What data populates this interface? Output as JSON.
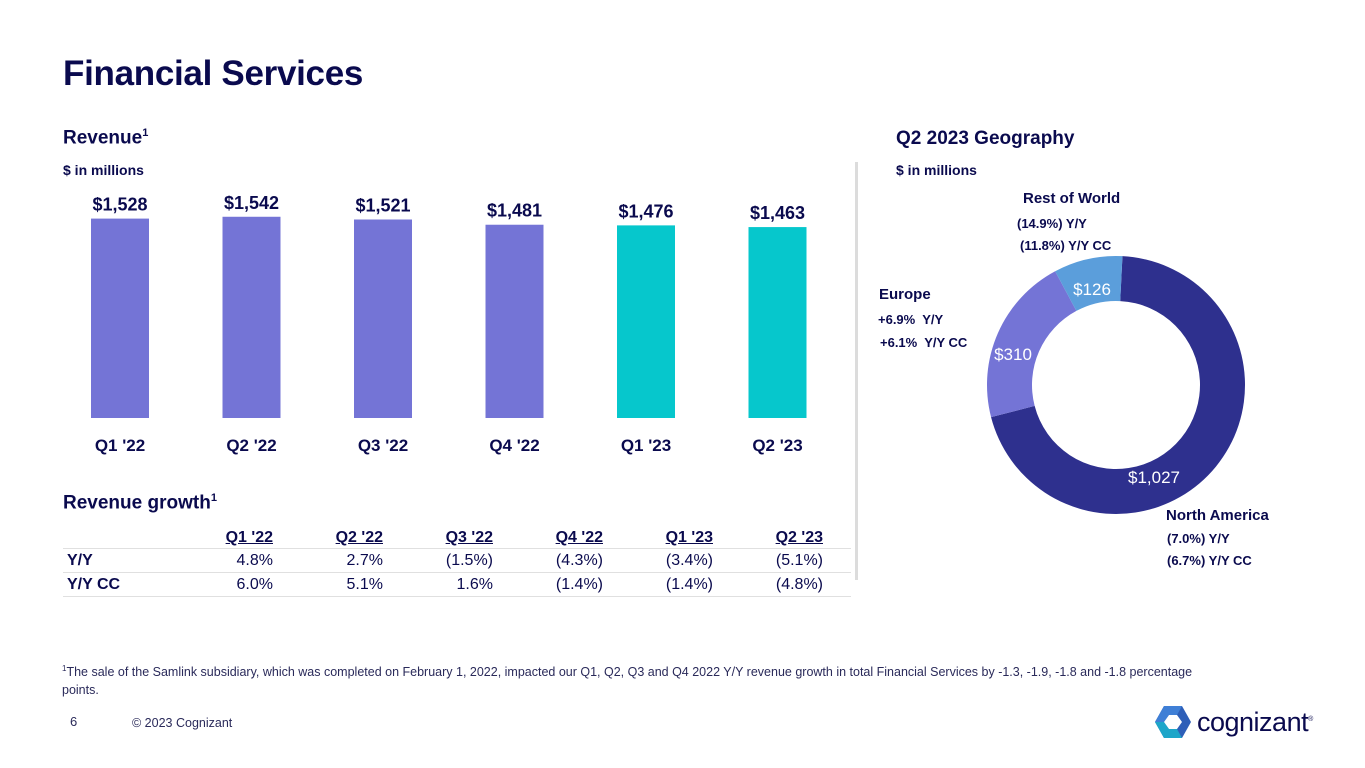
{
  "page": {
    "title": "Financial Services",
    "page_number": "6",
    "copyright": "© 2023 Cognizant",
    "logo_text": "cognizant",
    "logo_mark": "®"
  },
  "revenue": {
    "title": "Revenue",
    "title_sup": "1",
    "units": "$ in millions"
  },
  "growth": {
    "title": "Revenue growth",
    "title_sup": "1",
    "columns": [
      "Q1 '22",
      "Q2 '22",
      "Q3 '22",
      "Q4 '22",
      "Q1 '23",
      "Q2 '23"
    ],
    "rows": [
      {
        "label": "Y/Y",
        "values": [
          "4.8%",
          "2.7%",
          "(1.5%)",
          "(4.3%)",
          "(3.4%)",
          "(5.1%)"
        ]
      },
      {
        "label": "Y/Y CC",
        "values": [
          "6.0%",
          "5.1%",
          "1.6%",
          "(1.4%)",
          "(1.4%)",
          "(4.8%)"
        ]
      }
    ]
  },
  "geography": {
    "title": "Q2 2023 Geography",
    "units": "$ in millions",
    "regions": [
      {
        "name": "North America",
        "value_label": "$1,027",
        "yy": "(7.0%) Y/Y",
        "yycc": "(6.7%) Y/Y CC"
      },
      {
        "name": "Europe",
        "value_label": "$310",
        "yy": "+6.9%  Y/Y",
        "yycc": "+6.1%  Y/Y CC"
      },
      {
        "name": "Rest of World",
        "value_label": "$126",
        "yy": "(14.9%) Y/Y",
        "yycc": "(11.8%) Y/Y CC"
      }
    ]
  },
  "footnote": {
    "sup": "1",
    "text": "The sale of the Samlink subsidiary, which was completed on February 1, 2022, impacted our Q1, Q2, Q3 and Q4 2022 Y/Y revenue growth in total Financial Services by -1.3, -1.9, -1.8 and -1.8 percentage points."
  },
  "colors": {
    "bar_2022": "#7474d6",
    "bar_2023": "#06c7cc",
    "north_america": "#2e308e",
    "europe": "#7474d6",
    "rest_of_world": "#5b9edb",
    "text": "#0a0a4e"
  },
  "chart_data": [
    {
      "type": "bar",
      "title": "Revenue",
      "ylabel": "$ in millions",
      "xlabel": "",
      "categories": [
        "Q1 '22",
        "Q2 '22",
        "Q3 '22",
        "Q4 '22",
        "Q1 '23",
        "Q2 '23"
      ],
      "values": [
        1528,
        1542,
        1521,
        1481,
        1476,
        1463
      ],
      "data_labels": [
        "$1,528",
        "$1,542",
        "$1,521",
        "$1,481",
        "$1,476",
        "$1,463"
      ],
      "series_colors": [
        "bar_2022",
        "bar_2022",
        "bar_2022",
        "bar_2022",
        "bar_2023",
        "bar_2023"
      ],
      "grid": false,
      "axes_visible": false
    },
    {
      "type": "pie",
      "variant": "donut",
      "title": "Q2 2023 Geography",
      "units": "$ in millions",
      "labels": [
        "North America",
        "Europe",
        "Rest of World"
      ],
      "values": [
        1027,
        310,
        126
      ],
      "data_labels": [
        "$1,027",
        "$310",
        "$126"
      ],
      "start": "top",
      "direction": "clockwise"
    }
  ]
}
